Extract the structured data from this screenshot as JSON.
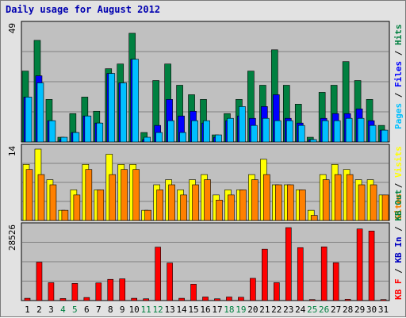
{
  "title": "Daily usage for August 2012",
  "colors": {
    "panel_bg": "#c0c0c0",
    "hits": "#008040",
    "files": "#0000ff",
    "pages": "#00c0ff",
    "visits": "#ffff00",
    "sites": "#ff8000",
    "kb_in": "#0000c0",
    "kb_out": "#008040",
    "kb_f": "#ff0000",
    "weekend_label": "#008040",
    "weekday_label": "#000000"
  },
  "chart_data": [
    {
      "type": "bar",
      "categories": [
        "1",
        "2",
        "3",
        "4",
        "5",
        "6",
        "7",
        "8",
        "9",
        "10",
        "11",
        "12",
        "13",
        "14",
        "15",
        "16",
        "17",
        "18",
        "19",
        "20",
        "21",
        "22",
        "23",
        "24",
        "25",
        "26",
        "27",
        "28",
        "29",
        "30",
        "31"
      ],
      "ylim": [
        0,
        49
      ],
      "tick_label": "49",
      "legend": [
        "Pages",
        "Files",
        "Hits"
      ],
      "series": [
        {
          "name": "Hits",
          "values": [
            30,
            43,
            18,
            2,
            12,
            19,
            13,
            31,
            33,
            46,
            4,
            26,
            33,
            24,
            20,
            18,
            3,
            12,
            18,
            30,
            24,
            39,
            24,
            16,
            2,
            21,
            24,
            34,
            26,
            18,
            7
          ]
        },
        {
          "name": "Files",
          "values": [
            19,
            28,
            9,
            1,
            4,
            11,
            8,
            29,
            25,
            35,
            1,
            7,
            18,
            11,
            13,
            8,
            2,
            9,
            11,
            10,
            15,
            20,
            10,
            8,
            1,
            10,
            12,
            12,
            14,
            9,
            5
          ]
        },
        {
          "name": "Pages",
          "values": [
            19,
            25,
            9,
            2,
            4,
            11,
            8,
            29,
            25,
            35,
            2,
            4,
            9,
            4,
            9,
            9,
            3,
            10,
            15,
            7,
            10,
            9,
            9,
            7,
            1,
            9,
            9,
            10,
            10,
            7,
            5
          ]
        }
      ]
    },
    {
      "type": "bar",
      "categories": [
        "1",
        "2",
        "3",
        "4",
        "5",
        "6",
        "7",
        "8",
        "9",
        "10",
        "11",
        "12",
        "13",
        "14",
        "15",
        "16",
        "17",
        "18",
        "19",
        "20",
        "21",
        "22",
        "23",
        "24",
        "25",
        "26",
        "27",
        "28",
        "29",
        "30",
        "31"
      ],
      "ylim": [
        0,
        14
      ],
      "tick_label": "14",
      "legend": [
        "Sites",
        "Visits"
      ],
      "series": [
        {
          "name": "Visits",
          "values": [
            11,
            14,
            8,
            2,
            6,
            11,
            6,
            13,
            11,
            11,
            2,
            7,
            8,
            6,
            8,
            9,
            5,
            6,
            6,
            9,
            12,
            7,
            7,
            6,
            2,
            9,
            11,
            10,
            8,
            8,
            5
          ]
        },
        {
          "name": "Sites",
          "values": [
            10,
            9,
            7,
            2,
            5,
            10,
            6,
            9,
            10,
            10,
            2,
            6,
            7,
            5,
            7,
            8,
            4,
            5,
            6,
            8,
            9,
            7,
            7,
            6,
            1,
            8,
            9,
            9,
            7,
            7,
            5
          ]
        }
      ]
    },
    {
      "type": "bar",
      "categories": [
        "1",
        "2",
        "3",
        "4",
        "5",
        "6",
        "7",
        "8",
        "9",
        "10",
        "11",
        "12",
        "13",
        "14",
        "15",
        "16",
        "17",
        "18",
        "19",
        "20",
        "21",
        "22",
        "23",
        "24",
        "25",
        "26",
        "27",
        "28",
        "29",
        "30",
        "31"
      ],
      "ylim": [
        0,
        28526
      ],
      "tick_label": "28526",
      "legend": [
        "KB F",
        "KB In",
        "KB Out"
      ],
      "series": [
        {
          "name": "KB F",
          "values": [
            900,
            15000,
            7000,
            800,
            6700,
            1200,
            6900,
            8300,
            8500,
            900,
            700,
            20900,
            14700,
            900,
            6400,
            1400,
            700,
            1400,
            1300,
            8700,
            20100,
            7000,
            28526,
            20700,
            400,
            21000,
            14800,
            500,
            28000,
            27200,
            400
          ]
        }
      ]
    }
  ]
}
